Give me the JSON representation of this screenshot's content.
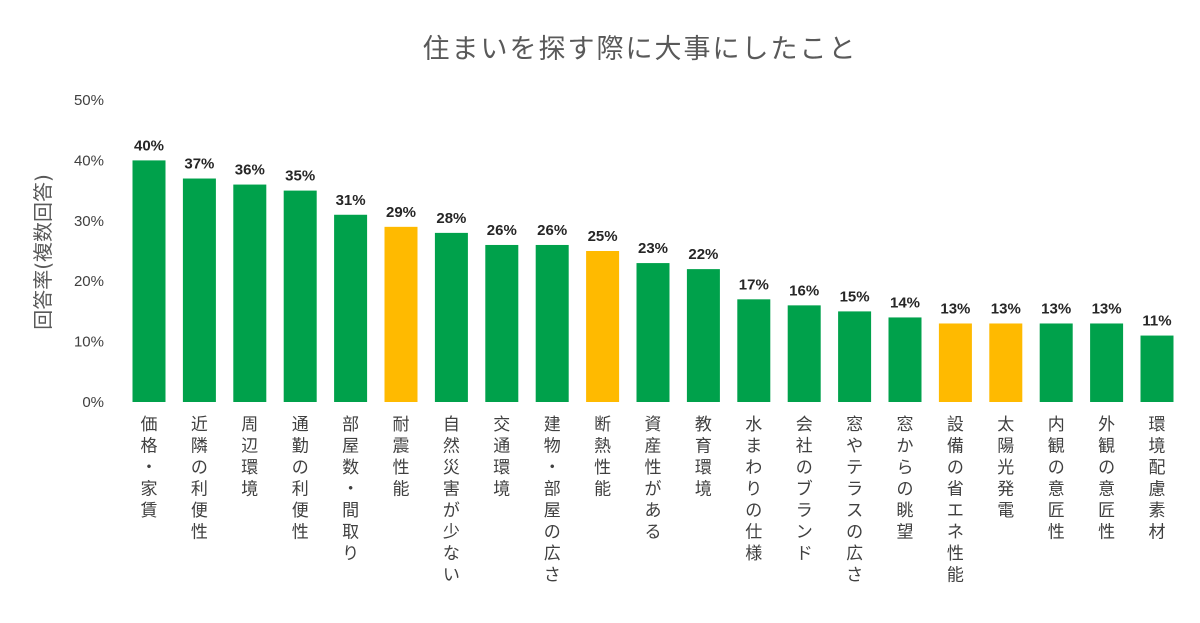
{
  "colors": {
    "default_bar": "#00A14B",
    "highlight_bar": "#FFBA00",
    "axis_text": "#404040",
    "title_text": "#595959"
  },
  "chart_data": {
    "type": "bar",
    "title": "住まいを探す際に大事にしたこと",
    "ylabel": "回答率(複数回答)",
    "xlabel": "",
    "ylim": [
      0,
      50
    ],
    "yticks": [
      "0%",
      "10%",
      "20%",
      "30%",
      "40%",
      "50%"
    ],
    "grid": false,
    "legend": "none",
    "categories": [
      "価格・家賃",
      "近隣の利便性",
      "周辺環境",
      "通勤の利便性",
      "部屋数・間取り",
      "耐震性能",
      "自然災害が少ない",
      "交通環境",
      "建物・部屋の広さ",
      "断熱性能",
      "資産性がある",
      "教育環境",
      "水まわりの仕様",
      "会社のブランド",
      "窓やテラスの広さ",
      "窓からの眺望",
      "設備の省エネ性能",
      "太陽光発電",
      "内観の意匠性",
      "外観の意匠性",
      "環境配慮素材"
    ],
    "values": [
      40,
      37,
      36,
      35,
      31,
      29,
      28,
      26,
      26,
      25,
      23,
      22,
      17,
      16,
      15,
      14,
      13,
      13,
      13,
      13,
      11
    ],
    "data_labels": [
      "40%",
      "37%",
      "36%",
      "35%",
      "31%",
      "29%",
      "28%",
      "26%",
      "26%",
      "25%",
      "23%",
      "22%",
      "17%",
      "16%",
      "15%",
      "14%",
      "13%",
      "13%",
      "13%",
      "13%",
      "11%"
    ],
    "highlighted": [
      false,
      false,
      false,
      false,
      false,
      true,
      false,
      false,
      false,
      true,
      false,
      false,
      false,
      false,
      false,
      false,
      true,
      true,
      false,
      false,
      false
    ]
  }
}
